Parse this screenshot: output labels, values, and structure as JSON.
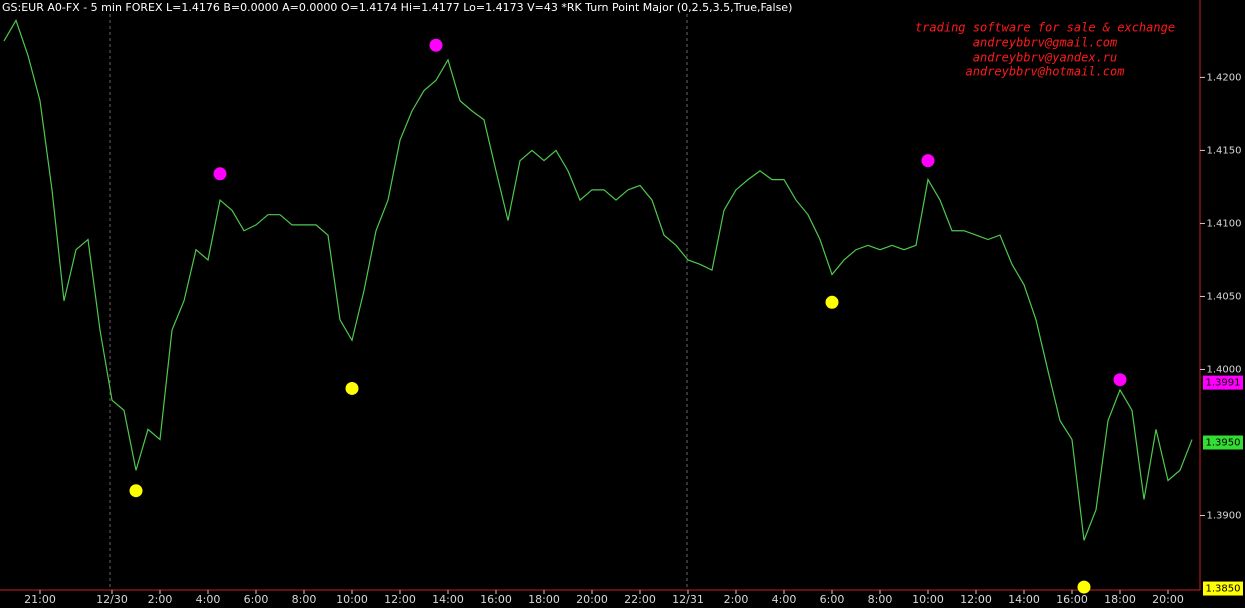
{
  "chart_data": {
    "type": "line",
    "title": "GS:EUR A0-FX - 5 min  FOREX  L=1.4176  B=0.0000  A=0.0000  O=1.4174  Hi=1.4177  Lo=1.4173  V=43  *RK Turn Point Major (0,2.5,3.5,True,False)",
    "annotations": [
      "trading software for sale & exchange",
      "andreybbrv@gmail.com",
      "andreybbrv@yandex.ru",
      "andreybbrv@hotmail.com"
    ],
    "categories": [
      null,
      null,
      null,
      "21:00",
      null,
      null,
      null,
      null,
      null,
      "12/30",
      null,
      null,
      null,
      "2:00",
      null,
      null,
      null,
      "4:00",
      null,
      null,
      null,
      "6:00",
      null,
      null,
      null,
      "8:00",
      null,
      null,
      null,
      "10:00",
      null,
      null,
      null,
      "12:00",
      null,
      null,
      null,
      "14:00",
      null,
      null,
      null,
      "16:00",
      null,
      null,
      null,
      "18:00",
      null,
      null,
      null,
      "20:00",
      null,
      null,
      null,
      "22:00",
      null,
      null,
      null,
      "12/31",
      null,
      null,
      null,
      "2:00",
      null,
      null,
      null,
      "4:00",
      null,
      null,
      null,
      "6:00",
      null,
      null,
      null,
      "8:00",
      null,
      null,
      null,
      "10:00",
      null,
      null,
      null,
      "12:00",
      null,
      null,
      null,
      "14:00",
      null,
      null,
      null,
      "16:00",
      null,
      null,
      null,
      "18:00",
      null,
      null,
      null,
      "20:00",
      null,
      null
    ],
    "series": [
      {
        "color": "#4ec94e",
        "values": [
          1.4225,
          1.4239,
          1.4215,
          1.4184,
          1.4123,
          1.4047,
          1.4082,
          1.4089,
          1.4027,
          1.3979,
          1.3972,
          1.3931,
          1.3959,
          1.3952,
          1.4027,
          1.4047,
          1.4082,
          1.4075,
          1.4116,
          1.4109,
          1.4095,
          1.4099,
          1.4106,
          1.4106,
          1.4099,
          1.4099,
          1.4099,
          1.4092,
          1.4034,
          1.402,
          1.4054,
          1.4095,
          1.4116,
          1.4157,
          1.4177,
          1.4191,
          1.4198,
          1.4212,
          1.4184,
          1.4177,
          1.4171,
          1.4136,
          1.4102,
          1.4143,
          1.415,
          1.4143,
          1.415,
          1.4136,
          1.4116,
          1.4123,
          1.4123,
          1.4116,
          1.4123,
          1.4126,
          1.4116,
          1.4092,
          1.4085,
          1.4075,
          1.4072,
          1.4068,
          1.4109,
          1.4123,
          1.413,
          1.4136,
          1.413,
          1.413,
          1.4116,
          1.4106,
          1.4089,
          1.4065,
          1.4075,
          1.4082,
          1.4085,
          1.4082,
          1.4085,
          1.4082,
          1.4085,
          1.413,
          1.4116,
          1.4095,
          1.4095,
          1.4092,
          1.4089,
          1.4092,
          1.4072,
          1.4058,
          1.4034,
          1.3999,
          1.3965,
          1.3952,
          1.3883,
          1.3904,
          1.3965,
          1.3986,
          1.3972,
          1.3911,
          1.3959,
          1.3924,
          1.3931,
          1.3952
        ]
      }
    ],
    "turn_points": [
      {
        "color": "#ff00ff",
        "x": [
          18,
          36,
          77,
          93
        ],
        "values": [
          1.4134,
          1.4222,
          1.4143,
          1.3993
        ]
      },
      {
        "color": "#ffff00",
        "x": [
          11,
          29,
          69,
          90
        ],
        "values": [
          1.3917,
          1.3987,
          1.4046,
          1.3851
        ]
      }
    ],
    "ylim": [
      1.3849,
      1.4253
    ],
    "yticks": [
      {
        "value": 1.42,
        "label": "1.4200"
      },
      {
        "value": 1.415,
        "label": "1.4150"
      },
      {
        "value": 1.41,
        "label": "1.4100"
      },
      {
        "value": 1.405,
        "label": "1.4050"
      },
      {
        "value": 1.4,
        "label": "1.4000"
      },
      {
        "value": 1.39,
        "label": "1.3900"
      }
    ],
    "price_labels": [
      {
        "value": 1.3991,
        "label": "1.3991",
        "color": "#ff00ff"
      },
      {
        "value": 1.395,
        "label": "1.3950",
        "color": "#33dd33"
      },
      {
        "value": 1.385,
        "label": "1.3850",
        "color": "#ffff00"
      }
    ]
  }
}
